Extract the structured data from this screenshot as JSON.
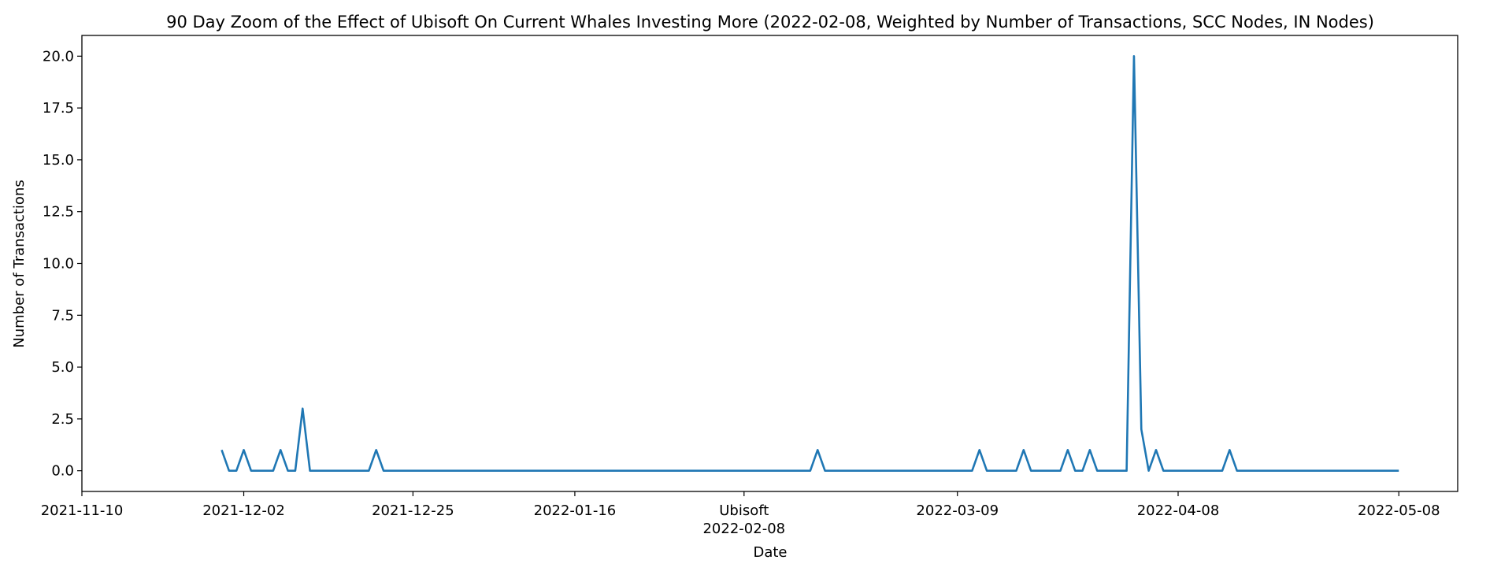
{
  "chart_data": {
    "type": "line",
    "title": "90 Day Zoom of the Effect of Ubisoft On Current Whales Investing More (2022-02-08, Weighted by Number of Transactions, SCC Nodes, IN Nodes)",
    "xlabel": "Date",
    "ylabel": "Number of Transactions",
    "xlim": [
      "2021-11-10",
      "2022-05-16"
    ],
    "ylim": [
      -1.0,
      21.0
    ],
    "grid": false,
    "color": "#1f77b4",
    "x_ticks": [
      "2021-11-10",
      "2021-12-02",
      "2021-12-25",
      "2022-01-16",
      "2022-02-08",
      "2022-03-09",
      "2022-04-08",
      "2022-05-08"
    ],
    "y_ticks": [
      "0.0",
      "2.5",
      "5.0",
      "7.5",
      "10.0",
      "12.5",
      "15.0",
      "17.5",
      "20.0"
    ],
    "event": {
      "label": "Ubisoft",
      "date": "2022-02-08"
    },
    "series": [
      {
        "points": [
          [
            "2021-11-29",
            1
          ],
          [
            "2021-11-30",
            0
          ],
          [
            "2021-12-01",
            0
          ],
          [
            "2021-12-02",
            1
          ],
          [
            "2021-12-03",
            0
          ],
          [
            "2021-12-06",
            0
          ],
          [
            "2021-12-07",
            1
          ],
          [
            "2021-12-08",
            0
          ],
          [
            "2021-12-09",
            0
          ],
          [
            "2021-12-10",
            3
          ],
          [
            "2021-12-11",
            0
          ],
          [
            "2021-12-19",
            0
          ],
          [
            "2021-12-20",
            1
          ],
          [
            "2021-12-21",
            0
          ],
          [
            "2022-02-17",
            0
          ],
          [
            "2022-02-18",
            1
          ],
          [
            "2022-02-19",
            0
          ],
          [
            "2022-03-11",
            0
          ],
          [
            "2022-03-12",
            1
          ],
          [
            "2022-03-13",
            0
          ],
          [
            "2022-03-17",
            0
          ],
          [
            "2022-03-18",
            1
          ],
          [
            "2022-03-19",
            0
          ],
          [
            "2022-03-23",
            0
          ],
          [
            "2022-03-24",
            1
          ],
          [
            "2022-03-25",
            0
          ],
          [
            "2022-03-26",
            0
          ],
          [
            "2022-03-27",
            1
          ],
          [
            "2022-03-28",
            0
          ],
          [
            "2022-04-01",
            0
          ],
          [
            "2022-04-02",
            20
          ],
          [
            "2022-04-03",
            2
          ],
          [
            "2022-04-04",
            0
          ],
          [
            "2022-04-05",
            1
          ],
          [
            "2022-04-06",
            0
          ],
          [
            "2022-04-14",
            0
          ],
          [
            "2022-04-15",
            1
          ],
          [
            "2022-04-16",
            0
          ],
          [
            "2022-05-08",
            0
          ]
        ]
      }
    ]
  }
}
